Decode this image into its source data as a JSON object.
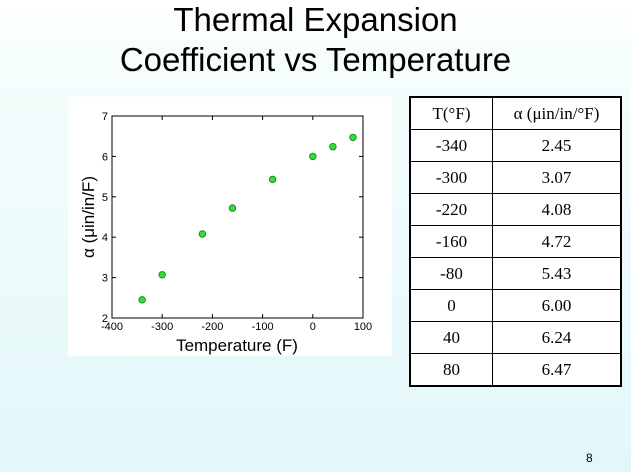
{
  "slide": {
    "title_line1": "Thermal Expansion",
    "title_line2": "Coefficient vs Temperature",
    "page_number": "8"
  },
  "chart_data": {
    "type": "scatter",
    "x": [
      -340,
      -300,
      -220,
      -160,
      -80,
      0,
      40,
      80
    ],
    "y": [
      2.45,
      3.07,
      4.08,
      4.72,
      5.43,
      6.0,
      6.24,
      6.47
    ],
    "xlabel": "Temperature (F)",
    "ylabel": "α (μin/in/F)",
    "xlim": [
      -400,
      100
    ],
    "ylim": [
      2,
      7
    ],
    "xticks": [
      -400,
      -300,
      -200,
      -100,
      0,
      100
    ],
    "xtick_labels": [
      "-400",
      "-300",
      "-200",
      "-100",
      "0",
      "100"
    ],
    "yticks": [
      2,
      3,
      4,
      5,
      6,
      7
    ],
    "ytick_labels": [
      "2",
      "3",
      "4",
      "5",
      "6",
      "7"
    ],
    "grid": false,
    "marker_color": "#33dd33",
    "marker_edge_color": "#1a7a1a"
  },
  "table": {
    "headers": [
      "T(°F)",
      "α (μin/in/°F)"
    ],
    "rows": [
      [
        "-340",
        "2.45"
      ],
      [
        "-300",
        "3.07"
      ],
      [
        "-220",
        "4.08"
      ],
      [
        "-160",
        "4.72"
      ],
      [
        "-80",
        "5.43"
      ],
      [
        "0",
        "6.00"
      ],
      [
        "40",
        "6.24"
      ],
      [
        "80",
        "6.47"
      ]
    ]
  }
}
